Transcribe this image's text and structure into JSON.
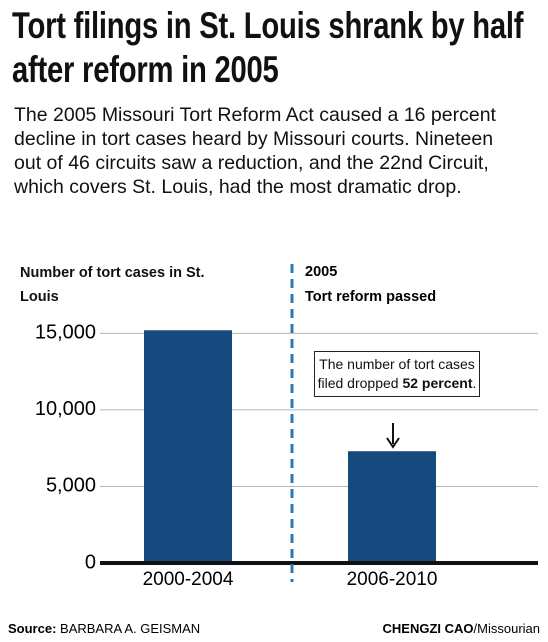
{
  "chart_data": {
    "type": "bar",
    "title": "Tort filings in St. Louis shrank by half after reform in 2005",
    "subtitle": "The 2005 Missouri Tort Reform Act caused a 16 percent decline in tort cases heard by Missouri courts. Nineteen out of 46 circuits saw a reduction, and the 22nd Circuit, which covers St. Louis, had the most dramatic drop.",
    "y_label": "Number of tort cases in St. Louis",
    "categories": [
      "2000-2004",
      "2006-2010"
    ],
    "values": [
      15200,
      7300
    ],
    "color": "#164a7e",
    "ylim": [
      0,
      16000
    ],
    "yticks": [
      0,
      {
        "value": 5000,
        "label": "5,000"
      },
      {
        "value": 10000,
        "label": "10,000"
      },
      {
        "value": 15000,
        "label": "15,000"
      }
    ],
    "grid": true,
    "event_year": "2005",
    "event_label": "Tort reform passed",
    "callout_text": "The number of tort cases filed dropped ",
    "callout_emphasis": "52 percent",
    "callout_end": ".",
    "source_label": "Source:",
    "source": "BARBARA A. GEISMAN",
    "credit_name": "CHENGZI CAO",
    "credit_org": "/Missourian"
  }
}
